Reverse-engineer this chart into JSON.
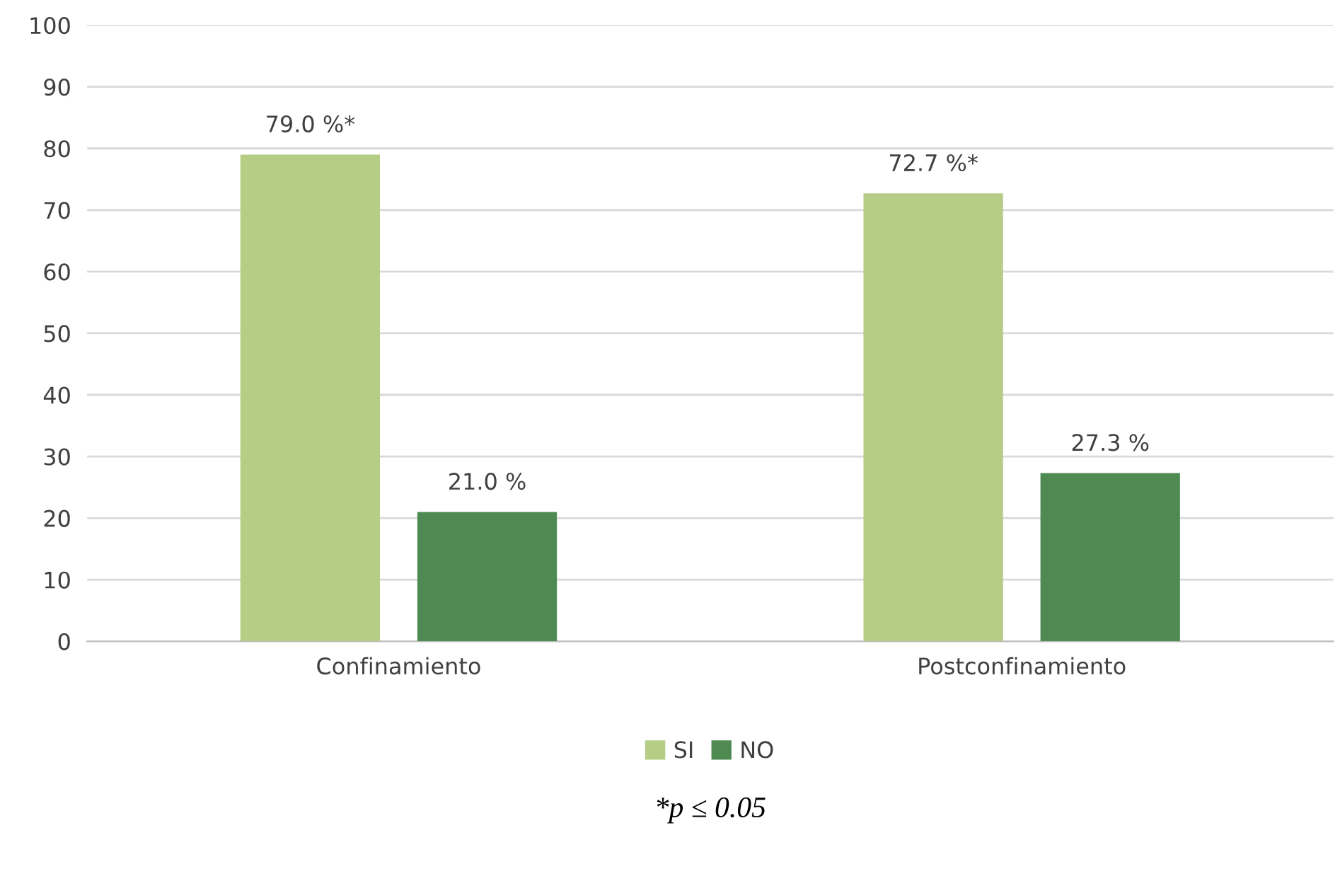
{
  "chart_data": {
    "type": "bar",
    "categories": [
      "Confinamiento",
      "Postconfinamiento"
    ],
    "series": [
      {
        "name": "SI",
        "color": "#b5cd85",
        "values": [
          79.0,
          72.7
        ],
        "value_labels": [
          "79.0 %*",
          "72.7 %*"
        ]
      },
      {
        "name": "NO",
        "color": "#4f8a52",
        "values": [
          21.0,
          27.3
        ],
        "value_labels": [
          "21.0 %",
          "27.3 %"
        ]
      }
    ],
    "ylim": [
      0,
      100
    ],
    "yticks": [
      0,
      10,
      20,
      30,
      40,
      50,
      60,
      70,
      80,
      90,
      100
    ],
    "grid": "y",
    "legend": "bottom",
    "annotations": [
      "*p ≤ 0.05"
    ]
  }
}
